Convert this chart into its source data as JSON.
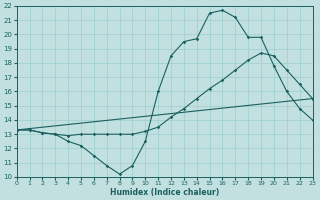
{
  "xlabel": "Humidex (Indice chaleur)",
  "bg_color": "#c2e0df",
  "grid_color": "#9ecece",
  "line_color": "#1a6060",
  "line1_x": [
    0,
    1,
    2,
    3,
    4,
    5,
    6,
    7,
    8,
    9,
    10,
    11,
    12,
    13,
    14,
    15,
    16,
    17,
    18,
    19,
    20,
    21,
    22,
    23
  ],
  "line1_y": [
    13.3,
    13.3,
    13.1,
    13.0,
    12.5,
    12.2,
    11.5,
    10.8,
    10.2,
    10.8,
    12.5,
    16.0,
    18.5,
    19.5,
    19.7,
    21.5,
    21.7,
    21.2,
    19.8,
    19.8,
    17.8,
    16.0,
    14.8,
    14.0
  ],
  "line2_x": [
    0,
    1,
    2,
    3,
    4,
    5,
    6,
    7,
    8,
    9,
    10,
    11,
    12,
    13,
    14,
    15,
    16,
    17,
    18,
    19,
    20,
    21,
    22,
    23
  ],
  "line2_y": [
    13.3,
    13.3,
    13.1,
    13.0,
    12.9,
    13.0,
    13.0,
    13.0,
    13.0,
    13.0,
    13.2,
    13.5,
    14.2,
    14.8,
    15.5,
    16.2,
    16.8,
    17.5,
    18.2,
    18.7,
    18.5,
    17.5,
    16.5,
    15.5
  ],
  "line3_x": [
    0,
    23
  ],
  "line3_y": [
    13.3,
    15.5
  ],
  "ylim": [
    10,
    22
  ],
  "xlim": [
    0,
    23
  ],
  "yticks": [
    10,
    11,
    12,
    13,
    14,
    15,
    16,
    17,
    18,
    19,
    20,
    21,
    22
  ],
  "xticks": [
    0,
    1,
    2,
    3,
    4,
    5,
    6,
    7,
    8,
    9,
    10,
    11,
    12,
    13,
    14,
    15,
    16,
    17,
    18,
    19,
    20,
    21,
    22,
    23
  ]
}
